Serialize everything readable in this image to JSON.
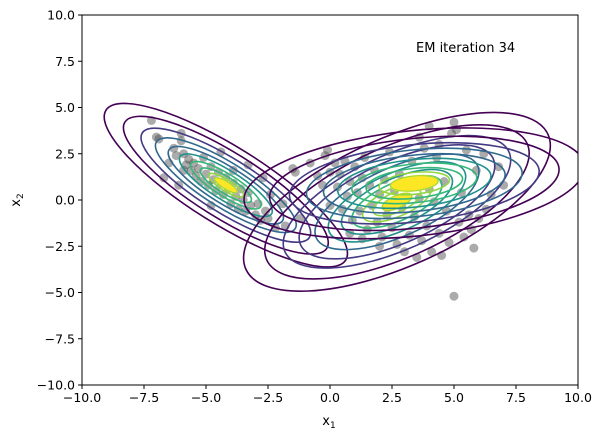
{
  "chart_data": {
    "type": "scatter",
    "title": "",
    "annotation": "EM iteration 34",
    "xlabel_base": "x",
    "xlabel_sub": "1",
    "ylabel_base": "x",
    "ylabel_sub": "2",
    "xlim": [
      -10,
      10
    ],
    "ylim": [
      -10,
      10
    ],
    "xticks": [
      -10,
      -7.5,
      -5,
      -2.5,
      0,
      2.5,
      5,
      7.5,
      10
    ],
    "yticks": [
      -10,
      -7.5,
      -5,
      -2.5,
      0,
      2.5,
      5,
      7.5,
      10
    ],
    "xtick_labels": [
      "−10.0",
      "−7.5",
      "−5.0",
      "−2.5",
      "0.0",
      "2.5",
      "5.0",
      "7.5",
      "10.0"
    ],
    "ytick_labels": [
      "−10.0",
      "−7.5",
      "−5.0",
      "−2.5",
      "0.0",
      "2.5",
      "5.0",
      "7.5",
      "10.0"
    ],
    "point_color": "#444444",
    "contour_colors": [
      "#440154",
      "#443983",
      "#31688e",
      "#21918c",
      "#35b779",
      "#90d743",
      "#fde725"
    ],
    "points": [
      [
        -7.2,
        4.3
      ],
      [
        -7.0,
        3.4
      ],
      [
        -6.9,
        3.3
      ],
      [
        -6.5,
        2.0
      ],
      [
        -6.3,
        2.8
      ],
      [
        -6.2,
        2.4
      ],
      [
        -6.0,
        3.6
      ],
      [
        -6.0,
        3.2
      ],
      [
        -5.9,
        2.5
      ],
      [
        -5.8,
        1.9
      ],
      [
        -5.7,
        2.2
      ],
      [
        -5.6,
        1.6
      ],
      [
        -5.5,
        2.0
      ],
      [
        -5.4,
        1.3
      ],
      [
        -5.3,
        1.7
      ],
      [
        -5.2,
        1.0
      ],
      [
        -5.1,
        2.3
      ],
      [
        -5.0,
        1.4
      ],
      [
        -4.9,
        0.8
      ],
      [
        -4.8,
        1.8
      ],
      [
        -4.7,
        1.1
      ],
      [
        -4.6,
        0.5
      ],
      [
        -4.5,
        1.5
      ],
      [
        -4.4,
        0.9
      ],
      [
        -4.3,
        0.3
      ],
      [
        -4.2,
        1.2
      ],
      [
        -4.1,
        0.6
      ],
      [
        -4.0,
        -0.2
      ],
      [
        -3.9,
        0.9
      ],
      [
        -3.8,
        0.2
      ],
      [
        -3.7,
        -0.5
      ],
      [
        -3.6,
        0.6
      ],
      [
        -3.5,
        0.0
      ],
      [
        -3.4,
        -0.6
      ],
      [
        -3.3,
        0.4
      ],
      [
        -3.2,
        -0.3
      ],
      [
        -3.0,
        -0.8
      ],
      [
        -2.9,
        -0.2
      ],
      [
        -2.8,
        -1.1
      ],
      [
        -2.7,
        1.2
      ],
      [
        -2.6,
        -0.6
      ],
      [
        -2.5,
        -1.0
      ],
      [
        -2.2,
        -1.5
      ],
      [
        -1.9,
        -0.2
      ],
      [
        -1.8,
        -1.4
      ],
      [
        -1.5,
        1.7
      ],
      [
        -1.4,
        1.5
      ],
      [
        -1.2,
        -1.0
      ],
      [
        -6.7,
        1.2
      ],
      [
        -6.1,
        0.8
      ],
      [
        -5.9,
        1.6
      ],
      [
        -4.8,
        -0.3
      ],
      [
        -4.4,
        2.6
      ],
      [
        -3.3,
        1.9
      ],
      [
        -3.9,
        1.6
      ],
      [
        -2.4,
        0.3
      ],
      [
        -0.8,
        2.0
      ],
      [
        -0.5,
        1.3
      ],
      [
        -0.3,
        0.8
      ],
      [
        -0.2,
        2.4
      ],
      [
        -0.1,
        2.7
      ],
      [
        0.0,
        1.5
      ],
      [
        0.0,
        -0.3
      ],
      [
        0.2,
        2.0
      ],
      [
        0.3,
        0.7
      ],
      [
        0.4,
        1.4
      ],
      [
        0.5,
        -0.5
      ],
      [
        0.6,
        2.1
      ],
      [
        0.7,
        0.2
      ],
      [
        0.8,
        1.0
      ],
      [
        0.9,
        -1.1
      ],
      [
        1.0,
        1.8
      ],
      [
        1.1,
        0.4
      ],
      [
        1.2,
        -0.6
      ],
      [
        1.3,
        1.2
      ],
      [
        1.4,
        2.3
      ],
      [
        1.5,
        -1.6
      ],
      [
        1.6,
        0.8
      ],
      [
        1.7,
        -0.3
      ],
      [
        1.8,
        1.6
      ],
      [
        1.9,
        -1.2
      ],
      [
        2.0,
        0.3
      ],
      [
        2.1,
        -2.0
      ],
      [
        2.2,
        1.1
      ],
      [
        2.3,
        -0.8
      ],
      [
        2.4,
        2.6
      ],
      [
        2.5,
        -1.5
      ],
      [
        2.6,
        0.5
      ],
      [
        2.7,
        -2.4
      ],
      [
        2.8,
        1.4
      ],
      [
        2.9,
        -0.4
      ],
      [
        3.0,
        -2.8
      ],
      [
        3.1,
        0.9
      ],
      [
        3.2,
        -1.9
      ],
      [
        3.3,
        2.1
      ],
      [
        3.4,
        -0.9
      ],
      [
        3.5,
        -3.1
      ],
      [
        3.6,
        0.1
      ],
      [
        3.7,
        -2.2
      ],
      [
        3.8,
        2.8
      ],
      [
        3.9,
        -1.4
      ],
      [
        4.0,
        0.6
      ],
      [
        4.1,
        -2.8
      ],
      [
        4.2,
        -0.1
      ],
      [
        4.3,
        2.3
      ],
      [
        4.4,
        -1.8
      ],
      [
        4.5,
        -3.0
      ],
      [
        4.6,
        1.0
      ],
      [
        4.7,
        -0.6
      ],
      [
        4.8,
        -2.3
      ],
      [
        4.9,
        3.6
      ],
      [
        5.0,
        4.2
      ],
      [
        5.0,
        -5.2
      ],
      [
        5.1,
        3.8
      ],
      [
        5.2,
        -1.2
      ],
      [
        5.3,
        0.4
      ],
      [
        5.4,
        -2.0
      ],
      [
        5.5,
        2.7
      ],
      [
        5.6,
        -0.8
      ],
      [
        5.7,
        -1.6
      ],
      [
        5.9,
        1.6
      ],
      [
        6.0,
        -1.0
      ],
      [
        6.3,
        -0.5
      ],
      [
        6.5,
        0.3
      ],
      [
        6.8,
        1.8
      ],
      [
        7.0,
        0.8
      ],
      [
        6.2,
        2.5
      ],
      [
        5.8,
        -2.6
      ],
      [
        1.3,
        -2.1
      ],
      [
        0.8,
        -1.8
      ],
      [
        2.0,
        -2.5
      ],
      [
        3.6,
        3.4
      ],
      [
        4.4,
        3.0
      ],
      [
        4.0,
        4.0
      ]
    ],
    "components": [
      {
        "cx": -4.2,
        "cy": 0.8,
        "angle_deg": -32,
        "rx": 1.5,
        "ry": 0.55,
        "levels": [
          3.8,
          3.2,
          2.65,
          2.2,
          1.8,
          1.45,
          1.1,
          0.8,
          0.55,
          0.35
        ]
      },
      {
        "cx": 2.7,
        "cy": -0.1,
        "angle_deg": 24,
        "rx": 2.3,
        "ry": 1.2,
        "levels": [
          2.9,
          2.5,
          2.15,
          1.85,
          1.55,
          1.3,
          1.05,
          0.85,
          0.65,
          0.45,
          0.28
        ]
      },
      {
        "cx": 3.4,
        "cy": 0.9,
        "angle_deg": 6,
        "rx": 2.3,
        "ry": 0.95,
        "levels": [
          3.0,
          2.55,
          2.2,
          1.9,
          1.6,
          1.35,
          1.1,
          0.85,
          0.62,
          0.42
        ]
      }
    ]
  }
}
